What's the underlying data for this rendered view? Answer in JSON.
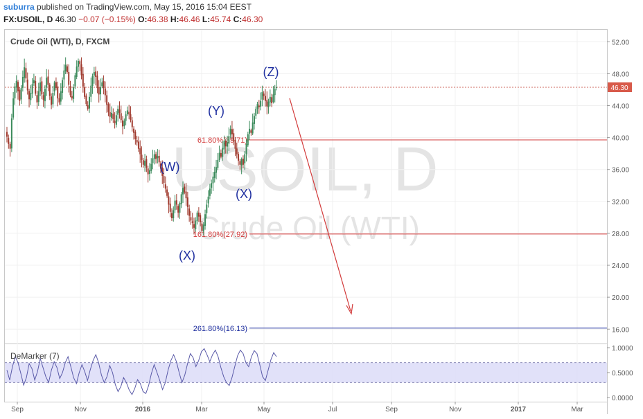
{
  "header": {
    "user": "suburra",
    "published_text": "published on TradingView.com, May 15, 2016 15:04 EEST",
    "symbol_line": "FX:USOIL, D",
    "last": "46.30",
    "change": "−0.07 (−0.15%)",
    "o_label": "O:",
    "o_value": "46.38",
    "h_label": "H:",
    "h_value": "46.46",
    "l_label": "L:",
    "l_value": "45.74",
    "c_label": "C:",
    "c_value": "46.30"
  },
  "panel_title": "Crude Oil (WTI), D, FXCM",
  "watermark": {
    "line1": "USOIL, D",
    "line2": "Crude Oil (WTI)"
  },
  "indicator_title": "DeMarker (7)",
  "colors": {
    "up": "#3b8a5b",
    "down": "#a03a2e",
    "fib": "#d23a3a",
    "target": "#1f2f9f",
    "wave_label": "#1f2fa0",
    "price_badge": "#d85a4a",
    "demarker": "#5a5aa8"
  },
  "chart_data": {
    "type": "candlestick",
    "title": "Crude Oil (WTI), D, FXCM",
    "y_axis": {
      "ticks": [
        "52.00",
        "48.00",
        "44.00",
        "40.00",
        "36.00",
        "32.00",
        "28.00",
        "24.00",
        "20.00",
        "16.00"
      ],
      "min": 14.2,
      "max": 53.5
    },
    "x_axis": {
      "labels": [
        "Sep",
        "Nov",
        "2016",
        "Mar",
        "May",
        "Jul",
        "Sep",
        "Nov",
        "2017",
        "Mar"
      ]
    },
    "last_price": {
      "value": 46.3,
      "label": "46.30"
    },
    "series_close": [
      40.1,
      39.2,
      38.6,
      42.4,
      44.9,
      46.4,
      47.1,
      45.8,
      44.6,
      46.2,
      47.6,
      48.8,
      47.4,
      45.9,
      44.8,
      45.6,
      46.7,
      47.2,
      45.5,
      44.4,
      45.8,
      46.9,
      45.4,
      44.7,
      46.1,
      47.5,
      46.6,
      45.2,
      44.1,
      45.6,
      46.9,
      46.2,
      44.9,
      44.4,
      45.8,
      47.2,
      48.4,
      49.1,
      48.2,
      46.6,
      45.3,
      44.9,
      46.3,
      47.8,
      48.9,
      49.6,
      49.2,
      47.8,
      46.4,
      45.1,
      44.2,
      43.6,
      45.1,
      46.5,
      47.7,
      48.2,
      47.6,
      46.2,
      45.4,
      46.3,
      46.9,
      46.2,
      45.3,
      44.1,
      43.2,
      42.6,
      43.1,
      42.3,
      41.8,
      42.8,
      43.6,
      43.1,
      42.2,
      41.4,
      42.1,
      42.9,
      43.4,
      42.9,
      42.2,
      41.3,
      40.6,
      39.8,
      39.4,
      38.6,
      37.9,
      37.2,
      36.6,
      37.1,
      36.2,
      35.4,
      35.9,
      36.7,
      37.4,
      37.9,
      37.3,
      37.7,
      36.9,
      36.1,
      35.2,
      34.3,
      33.6,
      32.7,
      31.6,
      30.7,
      29.9,
      30.9,
      32.1,
      31.6,
      30.6,
      31.8,
      32.9,
      33.7,
      33.1,
      32.4,
      31.3,
      30.2,
      29.6,
      29.3,
      28.7,
      29.6,
      30.6,
      30.1,
      29.4,
      28.3,
      29.1,
      30.4,
      31.6,
      32.6,
      33.6,
      34.3,
      35.1,
      35.7,
      36.3,
      37.2,
      38.1,
      37.6,
      38.7,
      39.6,
      38.9,
      39.4,
      40.2,
      41.1,
      40.4,
      39.6,
      38.6,
      37.9,
      37.1,
      36.6,
      37.3,
      36.6,
      37.9,
      39.2,
      40.4,
      41.1,
      40.6,
      41.9,
      42.7,
      43.6,
      44.2,
      43.8,
      44.6,
      45.7,
      45.2,
      44.6,
      43.9,
      44.5,
      45.1,
      44.3,
      45.4,
      46.1,
      46.3
    ],
    "fib_levels": [
      {
        "label": "61.80%(39.71)",
        "value": 39.71
      },
      {
        "label": "161.80%(27.92)",
        "value": 27.92
      },
      {
        "label": "261.80%(16.13)",
        "value": 16.13
      }
    ],
    "wave_labels": [
      "(W)",
      "(X)",
      "(Y)",
      "(X)",
      "(Z)"
    ],
    "demarker": {
      "name": "DeMarker (7)",
      "ticks": [
        "1.0000",
        "0.5000",
        "0.0000"
      ],
      "band": [
        0.3,
        0.7
      ],
      "values": [
        0.55,
        0.35,
        0.62,
        0.82,
        0.7,
        0.48,
        0.25,
        0.4,
        0.68,
        0.58,
        0.35,
        0.52,
        0.78,
        0.6,
        0.42,
        0.3,
        0.55,
        0.72,
        0.6,
        0.38,
        0.5,
        0.7,
        0.82,
        0.62,
        0.4,
        0.28,
        0.5,
        0.66,
        0.52,
        0.34,
        0.56,
        0.74,
        0.86,
        0.7,
        0.45,
        0.3,
        0.42,
        0.64,
        0.5,
        0.26,
        0.12,
        0.22,
        0.4,
        0.3,
        0.15,
        0.06,
        0.18,
        0.36,
        0.28,
        0.12,
        0.08,
        0.24,
        0.48,
        0.66,
        0.5,
        0.34,
        0.16,
        0.3,
        0.55,
        0.74,
        0.86,
        0.72,
        0.5,
        0.3,
        0.45,
        0.68,
        0.88,
        0.8,
        0.62,
        0.74,
        0.92,
        0.98,
        0.86,
        0.72,
        0.86,
        0.95,
        0.82,
        0.6,
        0.42,
        0.3,
        0.24,
        0.4,
        0.62,
        0.84,
        0.95,
        0.88,
        0.7,
        0.62,
        0.82,
        0.94,
        0.88,
        0.66,
        0.42,
        0.34,
        0.55,
        0.76,
        0.9,
        0.82
      ]
    }
  }
}
